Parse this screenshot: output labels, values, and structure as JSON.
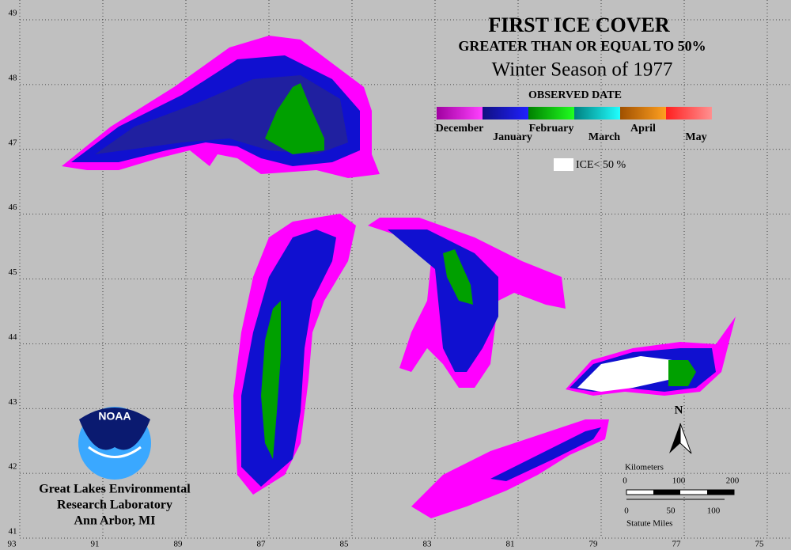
{
  "map": {
    "title": "FIRST ICE COVER",
    "subtitle": "GREATER THAN OR EQUAL TO 50%",
    "season": "Winter Season of 1977",
    "legend": {
      "title": "OBSERVED DATE",
      "months": [
        "December",
        "January",
        "February",
        "March",
        "April",
        "May"
      ],
      "ice_note": "ICE< 50 %"
    },
    "lonlim": [
      93,
      75
    ],
    "latlim": [
      41,
      49
    ],
    "lon_ticks": [
      93,
      91,
      89,
      87,
      85,
      83,
      81,
      79,
      77,
      75
    ],
    "lat_ticks": [
      49,
      48,
      47,
      46,
      45,
      44,
      43,
      42,
      41
    ],
    "north": "N",
    "scale": {
      "km_label": "Kilometers",
      "km": [
        "0",
        "100",
        "200"
      ],
      "mi": [
        "0",
        "50",
        "100"
      ],
      "mi_label": "Statute Miles"
    },
    "logo": "NOAA",
    "credit": [
      "Great Lakes Environmental",
      "Research Laboratory",
      "Ann Arbor, MI"
    ]
  }
}
